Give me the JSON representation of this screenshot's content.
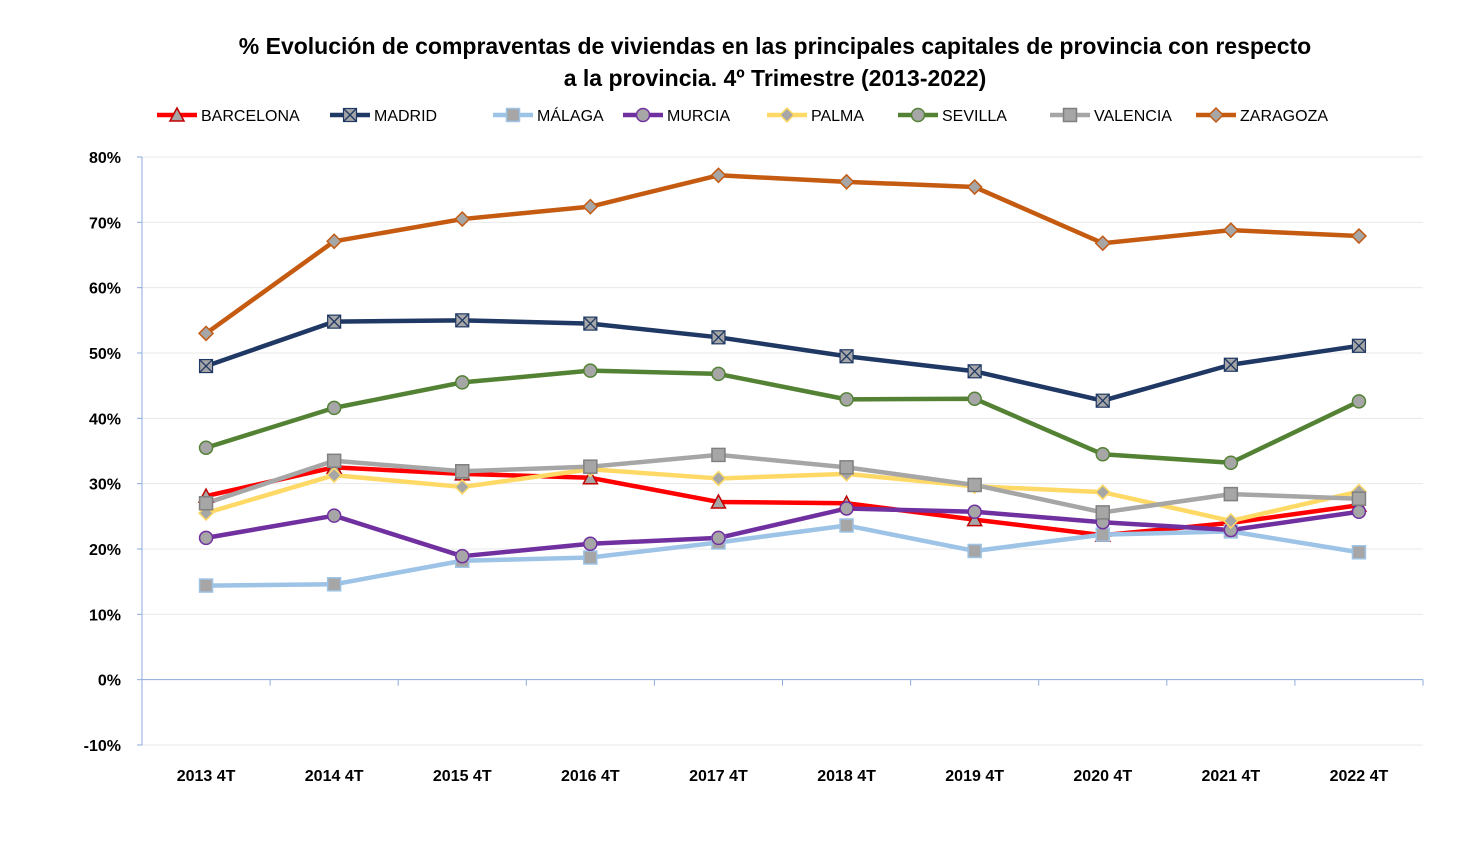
{
  "chart_data": {
    "type": "line",
    "title_line1": "% Evolución de compraventas de viviendas en las principales capitales de provincia con respecto",
    "title_line2": "a la provincia.  4º Trimestre (2013-2022)",
    "categories": [
      "2013 4T",
      "2014 4T",
      "2015 4T",
      "2016 4T",
      "2017 4T",
      "2018 4T",
      "2019 4T",
      "2020 4T",
      "2021 4T",
      "2022 4T"
    ],
    "ylim": [
      -10,
      80
    ],
    "yticks": [
      "80%",
      "70%",
      "60%",
      "50%",
      "40%",
      "30%",
      "20%",
      "10%",
      "0%",
      "-10%"
    ],
    "ytick_values": [
      80,
      70,
      60,
      50,
      40,
      30,
      20,
      10,
      0,
      -10
    ],
    "grid": true,
    "legend_position": "top",
    "series": [
      {
        "name": "BARCELONA",
        "color": "#ff0000",
        "marker": "triangle",
        "marker_fill": "#a6a6a6",
        "marker_stroke": "#c00000",
        "values": [
          28.1,
          32.5,
          31.5,
          30.9,
          27.2,
          27.0,
          24.5,
          22.1,
          24.0,
          26.7
        ]
      },
      {
        "name": "MADRID",
        "color": "#1f3864",
        "marker": "xsquare",
        "marker_fill": "#a6a6a6",
        "marker_stroke": "#1f3864",
        "values": [
          48.0,
          54.8,
          55.0,
          54.5,
          52.4,
          49.5,
          47.2,
          42.7,
          48.2,
          51.1
        ]
      },
      {
        "name": "MÁLAGA",
        "color": "#9dc3e6",
        "marker": "square",
        "marker_fill": "#a6a6a6",
        "marker_stroke": "#9dc3e6",
        "values": [
          14.4,
          14.6,
          18.2,
          18.7,
          21.0,
          23.6,
          19.7,
          22.2,
          22.7,
          19.5
        ]
      },
      {
        "name": "MURCIA",
        "color": "#7030a0",
        "marker": "circle",
        "marker_fill": "#a6a6a6",
        "marker_stroke": "#7030a0",
        "values": [
          21.7,
          25.1,
          18.9,
          20.8,
          21.7,
          26.2,
          25.7,
          24.1,
          22.9,
          25.7
        ]
      },
      {
        "name": "PALMA",
        "color": "#ffd966",
        "marker": "diamond",
        "marker_fill": "#a6a6a6",
        "marker_stroke": "#ffd966",
        "values": [
          25.5,
          31.3,
          29.5,
          32.2,
          30.8,
          31.5,
          29.6,
          28.7,
          24.3,
          28.8
        ]
      },
      {
        "name": "SEVILLA",
        "color": "#548235",
        "marker": "circle",
        "marker_fill": "#a6a6a6",
        "marker_stroke": "#548235",
        "values": [
          35.5,
          41.6,
          45.5,
          47.3,
          46.8,
          42.9,
          43.0,
          34.5,
          33.2,
          42.6
        ]
      },
      {
        "name": "VALENCIA",
        "color": "#a6a6a6",
        "marker": "square",
        "marker_fill": "#a6a6a6",
        "marker_stroke": "#808080",
        "values": [
          27.0,
          33.5,
          31.9,
          32.6,
          34.4,
          32.5,
          29.8,
          25.6,
          28.4,
          27.7
        ]
      },
      {
        "name": "ZARAGOZA",
        "color": "#c55a11",
        "marker": "diamond",
        "marker_fill": "#a6a6a6",
        "marker_stroke": "#c55a11",
        "values": [
          53.0,
          67.1,
          70.5,
          72.4,
          77.2,
          76.2,
          75.4,
          66.8,
          68.8,
          67.9
        ]
      }
    ]
  }
}
